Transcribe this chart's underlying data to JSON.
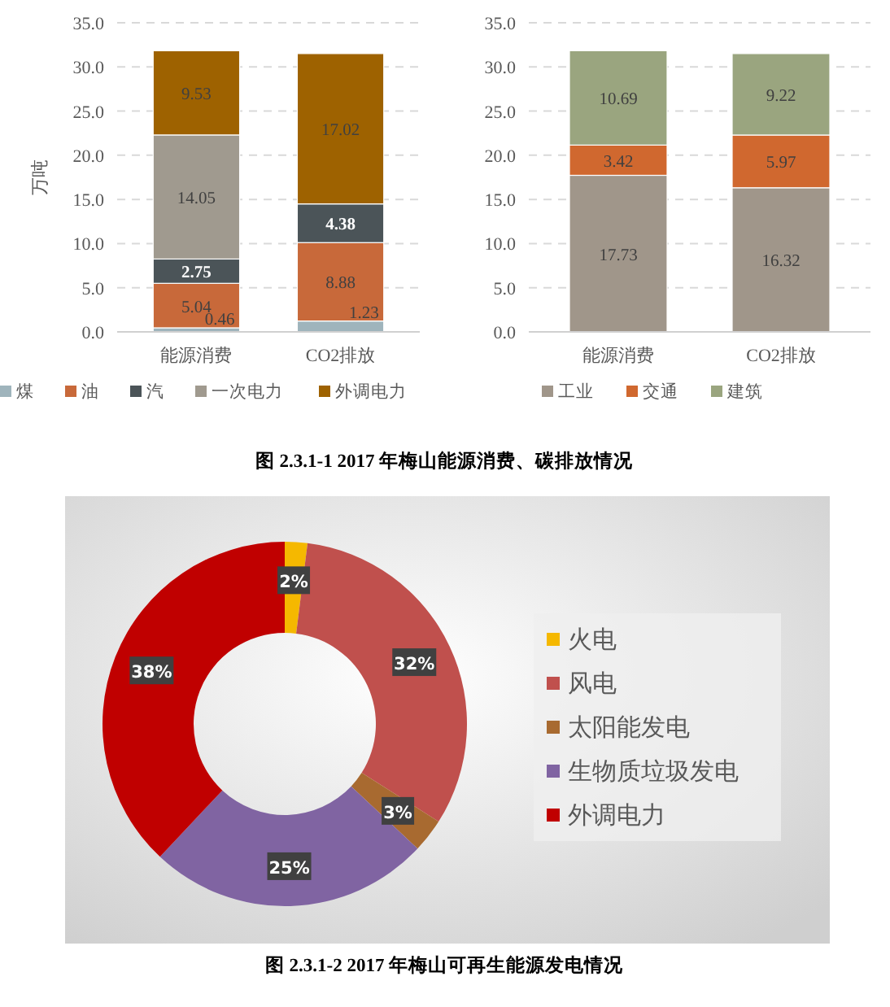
{
  "chart_data": [
    {
      "type": "bar",
      "stacked": true,
      "ylabel": "万吨",
      "categories": [
        "能源消费",
        "CO2排放"
      ],
      "series": [
        {
          "name": "煤",
          "color": "#9fb4bc",
          "values": [
            0.46,
            1.23
          ]
        },
        {
          "name": "油",
          "color": "#c8693a",
          "values": [
            5.04,
            8.88
          ]
        },
        {
          "name": "汽",
          "color": "#4b5458",
          "values": [
            2.75,
            4.38
          ]
        },
        {
          "name": "一次电力",
          "color": "#a09a8f",
          "values": [
            14.05,
            null
          ]
        },
        {
          "name": "外调电力",
          "color": "#9e6200",
          "values": [
            9.53,
            17.02
          ]
        }
      ],
      "ylim": [
        0,
        35
      ],
      "yticks": [
        {
          "value": 0,
          "label": "0.0"
        },
        {
          "value": 5,
          "label": "5.0"
        },
        {
          "value": 10,
          "label": "10.0"
        },
        {
          "value": 15,
          "label": "15.0"
        },
        {
          "value": 20,
          "label": "20.0"
        },
        {
          "value": 25,
          "label": "25.0"
        },
        {
          "value": 30,
          "label": "30.0"
        },
        {
          "value": 35,
          "label": "35.0"
        }
      ],
      "grid": "y",
      "legend": "bottom",
      "data_labels": true,
      "annotations": [
        "图 2.3.1-1 2017 年梅山能源消费、碳排放情况"
      ]
    },
    {
      "type": "bar",
      "stacked": true,
      "categories": [
        "能源消费",
        "CO2排放"
      ],
      "series": [
        {
          "name": "工业",
          "color": "#a0968a",
          "values": [
            17.73,
            16.32
          ]
        },
        {
          "name": "交通",
          "color": "#d0682f",
          "values": [
            3.42,
            5.97
          ]
        },
        {
          "name": "建筑",
          "color": "#9aa57f",
          "values": [
            10.69,
            9.22
          ]
        }
      ],
      "ylim": [
        0,
        35
      ],
      "yticks": [
        {
          "value": 0,
          "label": "0.0"
        },
        {
          "value": 5,
          "label": "5.0"
        },
        {
          "value": 10,
          "label": "10.0"
        },
        {
          "value": 15,
          "label": "15.0"
        },
        {
          "value": 20,
          "label": "20.0"
        },
        {
          "value": 25,
          "label": "25.0"
        },
        {
          "value": 30,
          "label": "30.0"
        },
        {
          "value": 35,
          "label": "35.0"
        }
      ],
      "grid": "y",
      "legend": "bottom",
      "data_labels": true
    },
    {
      "type": "donut",
      "categories": [
        "火电",
        "风电",
        "太阳能发电",
        "生物质垃圾发电",
        "外调电力"
      ],
      "values": [
        2,
        32,
        3,
        25,
        38
      ],
      "value_labels": [
        "2%",
        "32%",
        "3%",
        "25%",
        "38%"
      ],
      "colors": [
        "#f5b800",
        "#c0504d",
        "#a86a30",
        "#8064a2",
        "#c00000"
      ],
      "legend": "right",
      "annotations": [
        "图 2.3.1-2 2017 年梅山可再生能源发电情况"
      ]
    }
  ]
}
